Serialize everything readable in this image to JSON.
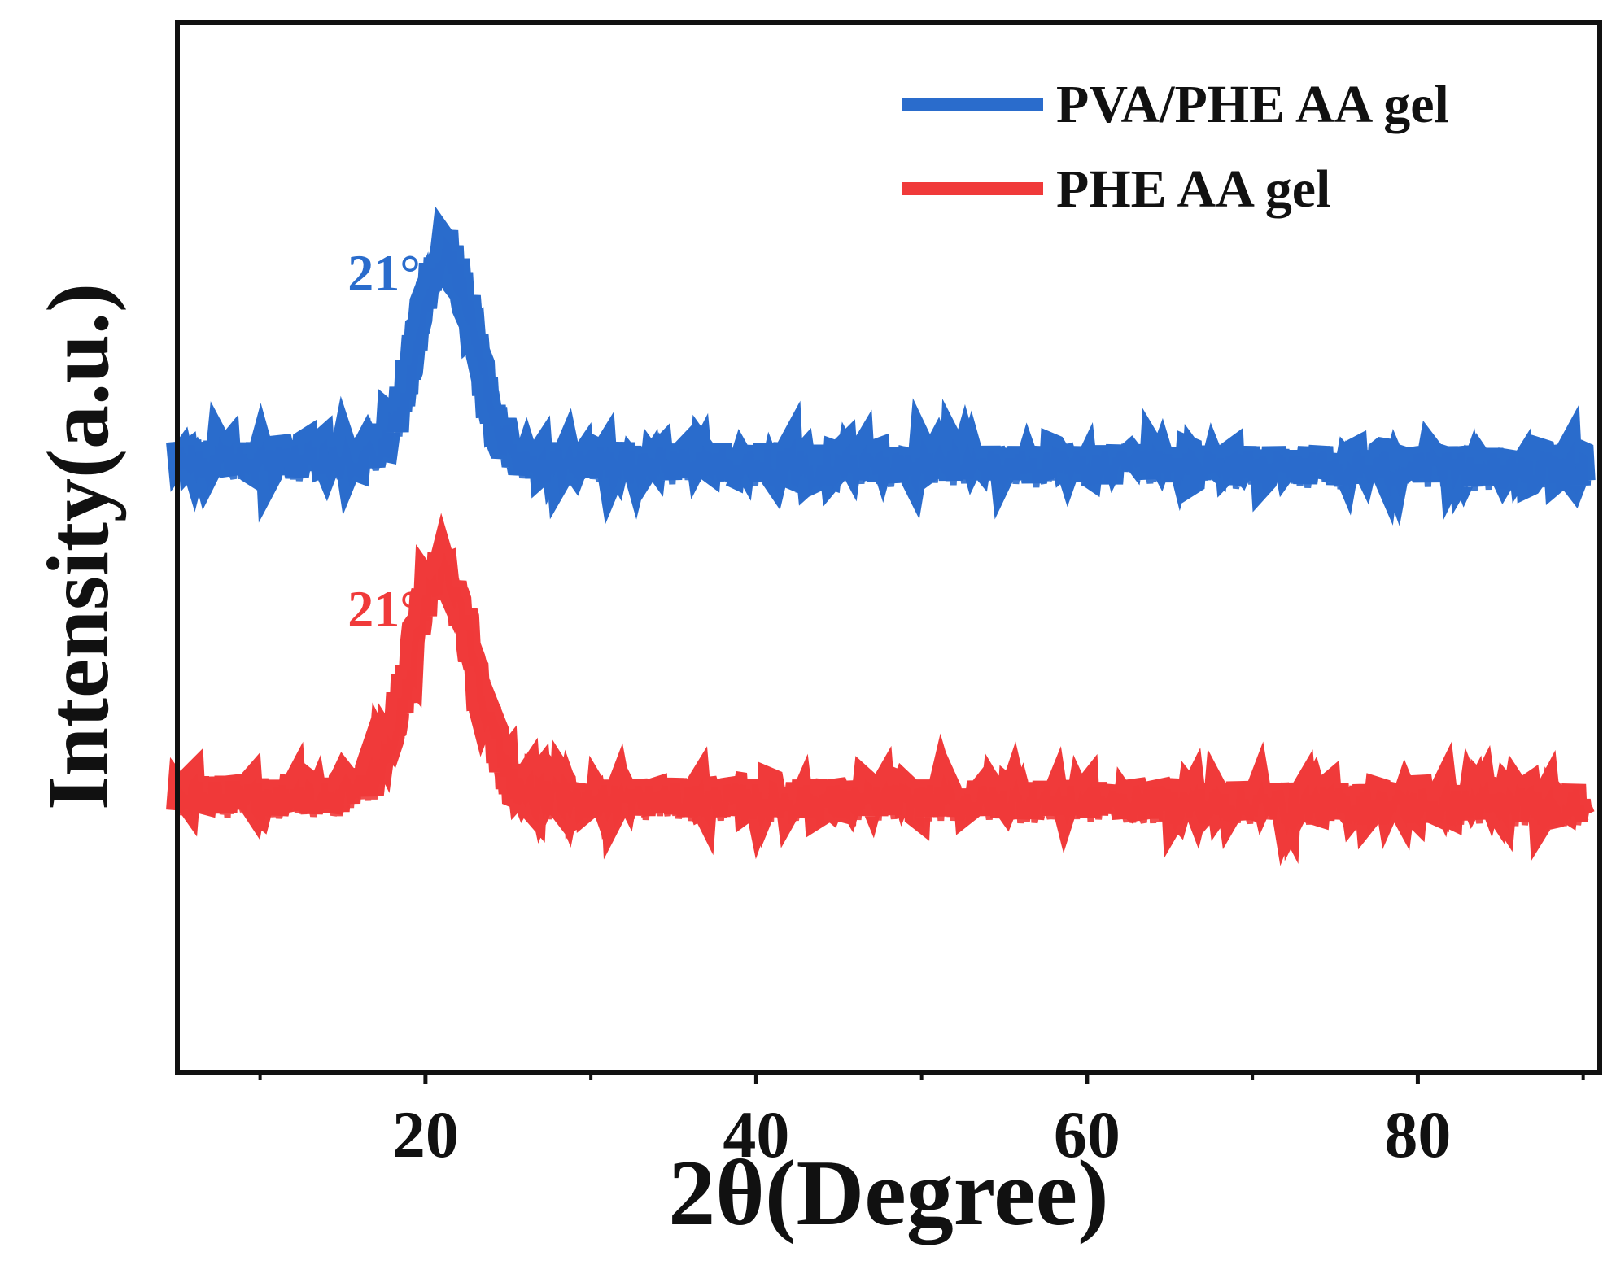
{
  "chart_data": {
    "type": "line",
    "title": "",
    "xlabel": "2θ(Degree)",
    "ylabel": "Intensity(a.u.)",
    "xlim": [
      5,
      91
    ],
    "ylim": [
      0,
      100
    ],
    "x_ticks": [
      20,
      40,
      60,
      80
    ],
    "x_minor_ticks": [
      10,
      30,
      50,
      70,
      90
    ],
    "y_ticks_shown": false,
    "grid": false,
    "legend_position": "top-right",
    "series": [
      {
        "name": "PVA/PHE AA gel",
        "color": "#2a6ccc",
        "baseline": 58.5,
        "noise_amplitude": 1.8,
        "peak": {
          "center": 21.2,
          "height": 19.5,
          "width": 1.7
        },
        "points": [
          [
            5,
            58.5
          ],
          [
            10,
            59.0
          ],
          [
            15,
            58.5
          ],
          [
            18,
            61.0
          ],
          [
            20,
            72.0
          ],
          [
            21.2,
            78.0
          ],
          [
            23,
            70.0
          ],
          [
            25,
            61.0
          ],
          [
            30,
            59.0
          ],
          [
            40,
            58.5
          ],
          [
            50,
            58.0
          ],
          [
            60,
            58.0
          ],
          [
            70,
            58.0
          ],
          [
            80,
            57.8
          ],
          [
            90,
            57.8
          ]
        ]
      },
      {
        "name": "PHE AA gel",
        "color": "#f03a3a",
        "baseline": 26.5,
        "noise_amplitude": 1.8,
        "peak": {
          "center": 21.0,
          "height": 21.5,
          "width": 1.9
        },
        "points": [
          [
            5,
            26.5
          ],
          [
            10,
            27.0
          ],
          [
            15,
            26.8
          ],
          [
            18,
            31.0
          ],
          [
            20,
            42.0
          ],
          [
            21.0,
            48.0
          ],
          [
            23,
            38.0
          ],
          [
            25,
            30.0
          ],
          [
            30,
            27.0
          ],
          [
            40,
            27.0
          ],
          [
            50,
            26.5
          ],
          [
            60,
            26.2
          ],
          [
            70,
            26.2
          ],
          [
            80,
            26.0
          ],
          [
            90,
            26.0
          ]
        ]
      }
    ],
    "annotations": [
      {
        "text": "21°",
        "series": "PVA/PHE AA gel",
        "x": 19.7,
        "y": 74.5,
        "color": "#2a6ccc"
      },
      {
        "text": "21°",
        "series": "PHE AA gel",
        "x": 19.7,
        "y": 42.5,
        "color": "#f03a3a"
      }
    ]
  }
}
